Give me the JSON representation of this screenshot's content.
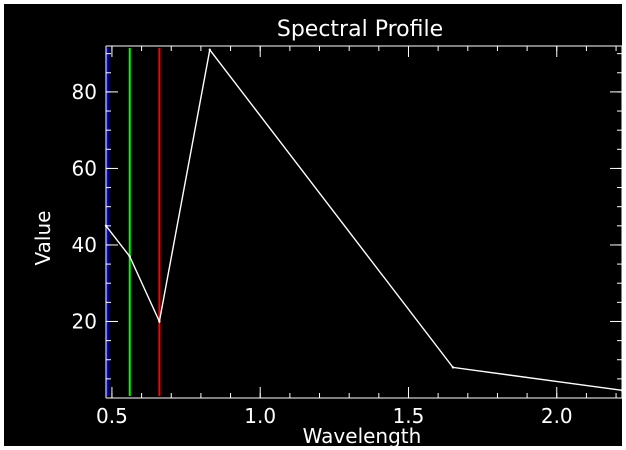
{
  "chart_data": {
    "type": "line",
    "title": "Spectral Profile",
    "xlabel": "Wavelength",
    "ylabel": "Value",
    "xlim": [
      0.48,
      2.22
    ],
    "ylim": [
      0,
      92
    ],
    "x_ticks": [
      0.5,
      1.0,
      1.5,
      2.0
    ],
    "x_tick_labels": [
      "0.5",
      "1.0",
      "1.5",
      "2.0"
    ],
    "y_ticks": [
      20,
      40,
      60,
      80
    ],
    "y_tick_labels": [
      "20",
      "40",
      "60",
      "80"
    ],
    "grid": false,
    "background_color": "#000000",
    "foreground_color": "#ffffff",
    "series": [
      {
        "x": [
          0.48,
          0.56,
          0.66,
          0.83,
          1.65,
          2.22
        ],
        "y": [
          45,
          37,
          20,
          91,
          8,
          2
        ],
        "color": "#ffffff"
      }
    ],
    "vertical_markers": [
      {
        "x": 0.485,
        "color": "#0000ff"
      },
      {
        "x": 0.56,
        "color": "#00ff00"
      },
      {
        "x": 0.66,
        "color": "#ff0000"
      }
    ]
  }
}
